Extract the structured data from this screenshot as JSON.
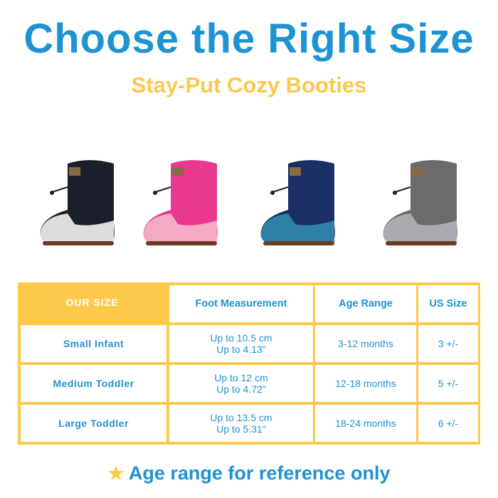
{
  "header": {
    "title": "Choose the Right Size",
    "subtitle": "Stay-Put Cozy Booties"
  },
  "booties": [
    {
      "name": "black",
      "upper": "#1b1f2b",
      "sole": "#dcdcdc"
    },
    {
      "name": "pink",
      "upper": "#e8398f",
      "sole": "#f4a9c4"
    },
    {
      "name": "navy",
      "upper": "#1a2f66",
      "sole": "#2e7fa8"
    },
    {
      "name": "gray",
      "upper": "#6b6b6e",
      "sole": "#a9abb0"
    }
  ],
  "colors": {
    "blue": "#1e93d3",
    "yellow": "#fcc94a"
  },
  "table": {
    "headers": [
      "OUR SIZE",
      "Foot Measurement",
      "Age Range",
      "US Size"
    ],
    "rows": [
      {
        "size": "Small Infant",
        "cm": "Up to 10.5 cm",
        "in": "Up to 4.13\"",
        "age": "3-12 months",
        "us": "3 +/-"
      },
      {
        "size": "Medium Toddler",
        "cm": "Up to 12 cm",
        "in": "Up to 4.72\"",
        "age": "12-18 months",
        "us": "5 +/-"
      },
      {
        "size": "Large Toddler",
        "cm": "Up to 13.5 cm",
        "in": "Up to 5.31\"",
        "age": "18-24 months",
        "us": "6 +/-"
      }
    ]
  },
  "footer": {
    "icon": "star-icon",
    "text": "Age range for reference only"
  }
}
